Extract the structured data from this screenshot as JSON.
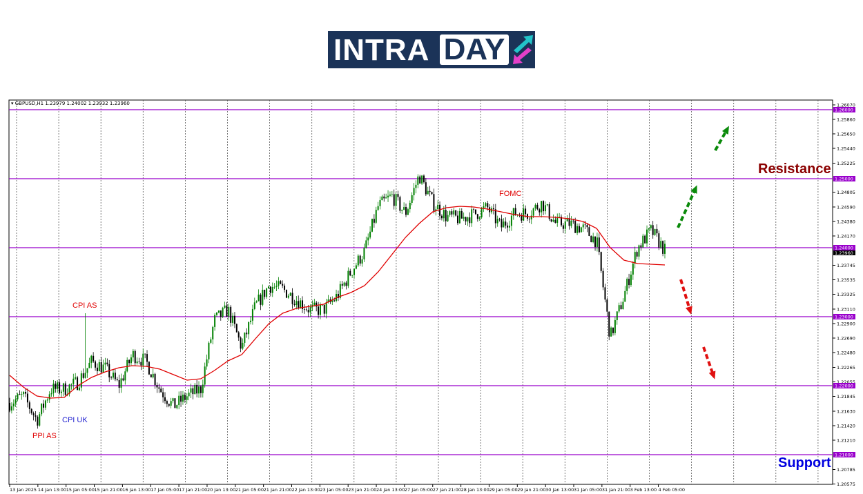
{
  "logo": {
    "text_part1": "INTRA",
    "text_part2": "DAY"
  },
  "chart_header": {
    "symbol": "GBPUSD,H1",
    "open": "1.23979",
    "high": "1.24002",
    "low": "1.23932",
    "close": "1.23960"
  },
  "chart_data": {
    "type": "candlestick",
    "symbol": "GBPUSD,H1",
    "ylim": [
      1.20575,
      1.2607
    ],
    "y_ticks": [
      "1.26070",
      "1.25860",
      "1.25650",
      "1.25440",
      "1.25225",
      "1.24805",
      "1.24590",
      "1.24380",
      "1.24170",
      "1.23745",
      "1.23535",
      "1.23325",
      "1.23110",
      "1.22900",
      "1.22690",
      "1.22480",
      "1.22265",
      "1.22055",
      "1.21845",
      "1.21630",
      "1.21420",
      "1.21210",
      "1.20785",
      "1.20575"
    ],
    "x_ticks": [
      "13 Jan 2025",
      "14 Jan 13:00",
      "15 Jan 05:00",
      "15 Jan 21:00",
      "16 Jan 13:00",
      "17 Jan 05:00",
      "17 Jan 21:00",
      "20 Jan 13:00",
      "21 Jan 05:00",
      "21 Jan 21:00",
      "22 Jan 13:00",
      "23 Jan 05:00",
      "23 Jan 21:00",
      "24 Jan 13:00",
      "27 Jan 05:00",
      "27 Jan 21:00",
      "28 Jan 13:00",
      "29 Jan 05:00",
      "29 Jan 21:00",
      "30 Jan 13:00",
      "31 Jan 05:00",
      "31 Jan 21:00",
      "3 Feb 13:00",
      "4 Feb 05:00"
    ],
    "approx_close_path": [
      1.2175,
      1.2185,
      1.215,
      1.2195,
      1.2195,
      1.2205,
      1.2235,
      1.2225,
      1.22,
      1.2245,
      1.2235,
      1.2195,
      1.217,
      1.2185,
      1.2195,
      1.2295,
      1.231,
      1.2255,
      1.2315,
      1.2345,
      1.234,
      1.2325,
      1.231,
      1.231,
      1.233,
      1.2365,
      1.2395,
      1.246,
      1.2475,
      1.245,
      1.2505,
      1.2465,
      1.2445,
      1.2442,
      1.2448,
      1.2458,
      1.243,
      1.245,
      1.245,
      1.2465,
      1.2435,
      1.2435,
      1.2428,
      1.241,
      1.227,
      1.233,
      1.24,
      1.2425,
      1.2396
    ],
    "moving_average_path": [
      1.2215,
      1.2198,
      1.2185,
      1.2182,
      1.2183,
      1.22,
      1.2212,
      1.222,
      1.2226,
      1.2229,
      1.2228,
      1.2224,
      1.2216,
      1.2208,
      1.221,
      1.2222,
      1.2236,
      1.2245,
      1.2268,
      1.229,
      1.2305,
      1.2312,
      1.2315,
      1.2318,
      1.2328,
      1.2335,
      1.2345,
      1.2365,
      1.239,
      1.2415,
      1.2435,
      1.2452,
      1.2458,
      1.246,
      1.2459,
      1.2456,
      1.2452,
      1.2448,
      1.2445,
      1.2445,
      1.2444,
      1.2442,
      1.2438,
      1.2428,
      1.24,
      1.2382,
      1.2377,
      1.2376,
      1.2375
    ],
    "levels": [
      {
        "value": 1.26,
        "label": "1.26000"
      },
      {
        "value": 1.25,
        "label": "1.25000"
      },
      {
        "value": 1.24,
        "label": "1.24000"
      },
      {
        "value": 1.23,
        "label": "1.23000"
      },
      {
        "value": 1.22,
        "label": "1.22000"
      },
      {
        "value": 1.21,
        "label": "1.21000"
      }
    ],
    "current_price_label": "1.23960",
    "grid": "vertical dashed",
    "colors": {
      "bull": "#008000",
      "bear": "#000000",
      "ma": "#e00000",
      "level": "#9900cc",
      "bullish_arrow": "#0a8a0a",
      "bearish_arrow": "#e01010"
    },
    "annotations": {
      "cpi_as": "CPI AS",
      "ppi_as": "PPI AS",
      "cpi_uk": "CPI UK",
      "fomc": "FOMC",
      "resistance": "Resistance",
      "support": "Support"
    }
  }
}
